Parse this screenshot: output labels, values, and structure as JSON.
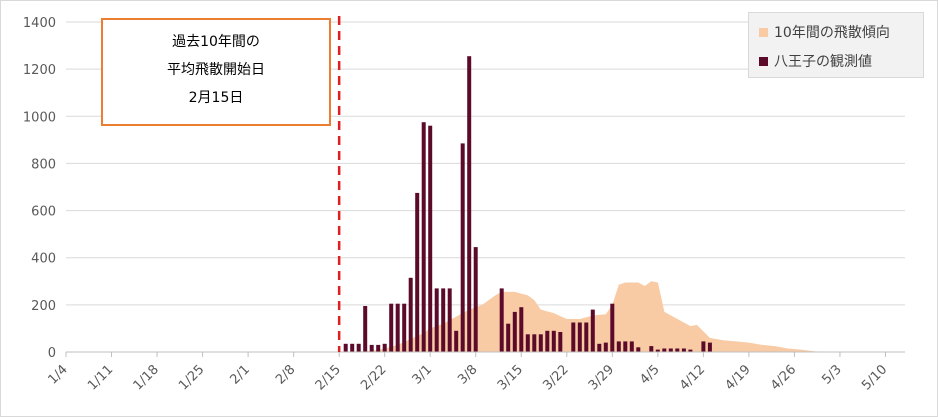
{
  "chart_data": {
    "type": "bar",
    "ylim": [
      0,
      1400
    ],
    "y_ticks": [
      0,
      200,
      400,
      600,
      800,
      1000,
      1200,
      1400
    ],
    "x_tick_labels": [
      "1/4",
      "1/11",
      "1/18",
      "1/25",
      "2/1",
      "2/8",
      "2/15",
      "2/22",
      "3/1",
      "3/8",
      "3/15",
      "3/22",
      "3/29",
      "4/5",
      "4/12",
      "4/19",
      "4/26",
      "5/3",
      "5/10"
    ],
    "x_tick_start": "1/4",
    "grid": "horizontal",
    "legend_position": "top-right",
    "annotation": {
      "lines": [
        "過去10年間の",
        "平均飛散開始日",
        "2月15日"
      ],
      "marker_date": "2/15"
    },
    "series": [
      {
        "name": "10年間の飛散傾向",
        "kind": "area",
        "color": "#f8cba4",
        "points": [
          [
            "2/15",
            0
          ],
          [
            "2/20",
            5
          ],
          [
            "2/22",
            15
          ],
          [
            "2/24",
            30
          ],
          [
            "2/26",
            55
          ],
          [
            "2/28",
            80
          ],
          [
            "3/1",
            100
          ],
          [
            "3/3",
            120
          ],
          [
            "3/5",
            150
          ],
          [
            "3/7",
            180
          ],
          [
            "3/9",
            200
          ],
          [
            "3/11",
            240
          ],
          [
            "3/12",
            255
          ],
          [
            "3/14",
            255
          ],
          [
            "3/16",
            240
          ],
          [
            "3/17",
            220
          ],
          [
            "3/18",
            180
          ],
          [
            "3/20",
            165
          ],
          [
            "3/22",
            140
          ],
          [
            "3/24",
            140
          ],
          [
            "3/26",
            155
          ],
          [
            "3/28",
            160
          ],
          [
            "3/29",
            200
          ],
          [
            "3/30",
            285
          ],
          [
            "3/31",
            295
          ],
          [
            "4/2",
            295
          ],
          [
            "4/3",
            280
          ],
          [
            "4/4",
            300
          ],
          [
            "4/5",
            295
          ],
          [
            "4/6",
            170
          ],
          [
            "4/8",
            140
          ],
          [
            "4/10",
            110
          ],
          [
            "4/11",
            115
          ],
          [
            "4/13",
            60
          ],
          [
            "4/15",
            50
          ],
          [
            "4/17",
            45
          ],
          [
            "4/19",
            40
          ],
          [
            "4/21",
            30
          ],
          [
            "4/23",
            25
          ],
          [
            "4/25",
            15
          ],
          [
            "4/27",
            10
          ],
          [
            "4/29",
            3
          ],
          [
            "5/1",
            0
          ]
        ]
      },
      {
        "name": "八王子の観測値",
        "kind": "bar",
        "color": "#5c0a2a",
        "points": [
          [
            "2/16",
            35
          ],
          [
            "2/17",
            35
          ],
          [
            "2/18",
            35
          ],
          [
            "2/19",
            195
          ],
          [
            "2/20",
            30
          ],
          [
            "2/21",
            30
          ],
          [
            "2/22",
            35
          ],
          [
            "2/23",
            205
          ],
          [
            "2/24",
            205
          ],
          [
            "2/25",
            205
          ],
          [
            "2/26",
            315
          ],
          [
            "2/27",
            675
          ],
          [
            "2/28",
            975
          ],
          [
            "3/1",
            960
          ],
          [
            "3/2",
            270
          ],
          [
            "3/3",
            270
          ],
          [
            "3/4",
            270
          ],
          [
            "3/5",
            90
          ],
          [
            "3/6",
            885
          ],
          [
            "3/7",
            1255
          ],
          [
            "3/8",
            445
          ],
          [
            "3/12",
            270
          ],
          [
            "3/13",
            120
          ],
          [
            "3/14",
            170
          ],
          [
            "3/15",
            190
          ],
          [
            "3/16",
            75
          ],
          [
            "3/17",
            75
          ],
          [
            "3/18",
            75
          ],
          [
            "3/19",
            90
          ],
          [
            "3/20",
            90
          ],
          [
            "3/21",
            85
          ],
          [
            "3/23",
            125
          ],
          [
            "3/24",
            125
          ],
          [
            "3/25",
            125
          ],
          [
            "3/26",
            180
          ],
          [
            "3/27",
            35
          ],
          [
            "3/28",
            40
          ],
          [
            "3/29",
            205
          ],
          [
            "3/30",
            45
          ],
          [
            "3/31",
            45
          ],
          [
            "4/1",
            45
          ],
          [
            "4/2",
            20
          ],
          [
            "4/4",
            25
          ],
          [
            "4/5",
            10
          ],
          [
            "4/6",
            15
          ],
          [
            "4/7",
            15
          ],
          [
            "4/8",
            15
          ],
          [
            "4/9",
            15
          ],
          [
            "4/10",
            10
          ],
          [
            "4/12",
            45
          ],
          [
            "4/13",
            40
          ]
        ]
      }
    ]
  }
}
